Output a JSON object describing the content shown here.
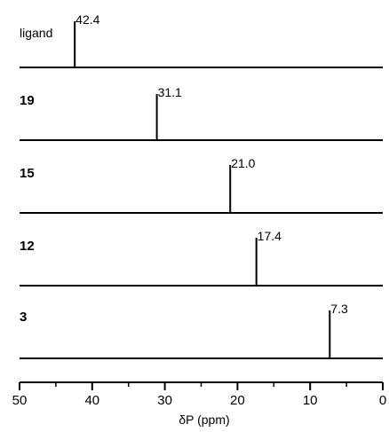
{
  "chart_data": {
    "type": "stick-spectrum",
    "xlabel": "δP (ppm)",
    "xlim": [
      50,
      0
    ],
    "xaxis_reversed": true,
    "xticks": [
      "50",
      "40",
      "30",
      "20",
      "10",
      "0"
    ],
    "xtick_values": [
      50,
      40,
      30,
      20,
      10,
      0
    ],
    "series": [
      {
        "name": "ligand",
        "bold": false,
        "peak": 42.4,
        "peak_label": "42.4"
      },
      {
        "name": "19",
        "bold": true,
        "peak": 31.1,
        "peak_label": "31.1"
      },
      {
        "name": "15",
        "bold": true,
        "peak": 21.0,
        "peak_label": "21.0"
      },
      {
        "name": "12",
        "bold": true,
        "peak": 17.4,
        "peak_label": "17.4"
      },
      {
        "name": "3",
        "bold": true,
        "peak": 7.3,
        "peak_label": "7.3"
      }
    ],
    "colors": {
      "line": "#000000",
      "background": "#ffffff"
    }
  }
}
